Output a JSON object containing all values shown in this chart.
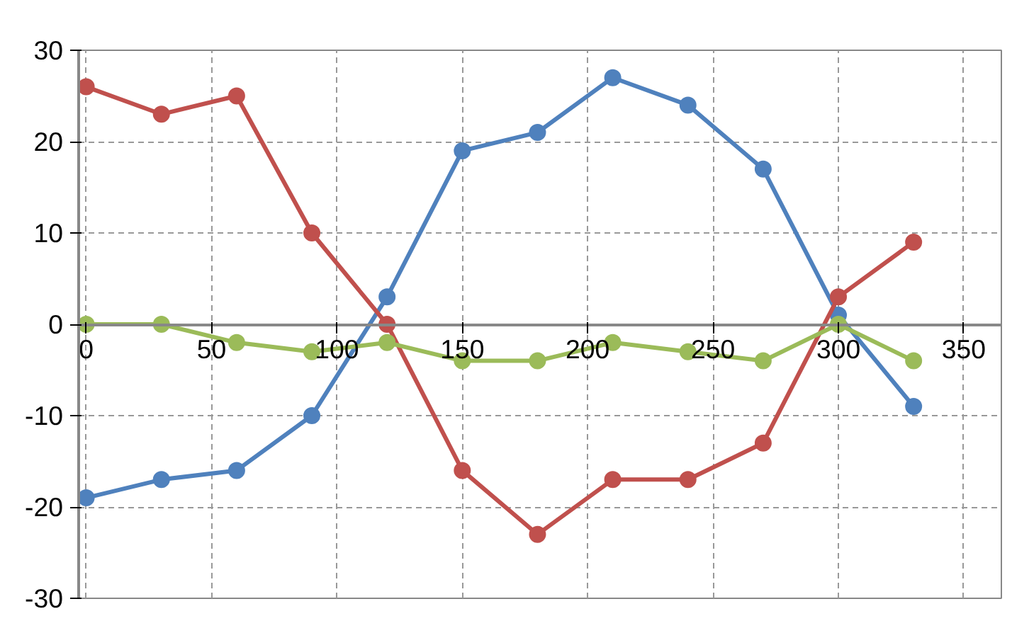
{
  "chart_data": {
    "type": "line",
    "x": [
      0,
      30,
      60,
      90,
      120,
      150,
      180,
      210,
      240,
      270,
      300,
      330
    ],
    "series": [
      {
        "color": "#4f81bd",
        "values": [
          -19,
          -17,
          -16,
          -10,
          3,
          19,
          21,
          27,
          24,
          17,
          1,
          -9
        ]
      },
      {
        "color": "#c0504d",
        "values": [
          26,
          23,
          25,
          10,
          0,
          -16,
          -23,
          -17,
          -17,
          -13,
          3,
          9
        ]
      },
      {
        "color": "#9bbb59",
        "values": [
          0,
          0,
          -2,
          -3,
          -2,
          -4,
          -4,
          -2,
          -3,
          -4,
          0,
          -4
        ]
      }
    ],
    "xlim": [
      -3,
      365
    ],
    "xticks": [
      0,
      50,
      100,
      150,
      200,
      250,
      300,
      350
    ],
    "ylim": [
      -30,
      30
    ],
    "yticks": [
      -30,
      -20,
      -10,
      0,
      10,
      20,
      30
    ],
    "grid": true,
    "marker": "circle",
    "line_style": "solid"
  }
}
